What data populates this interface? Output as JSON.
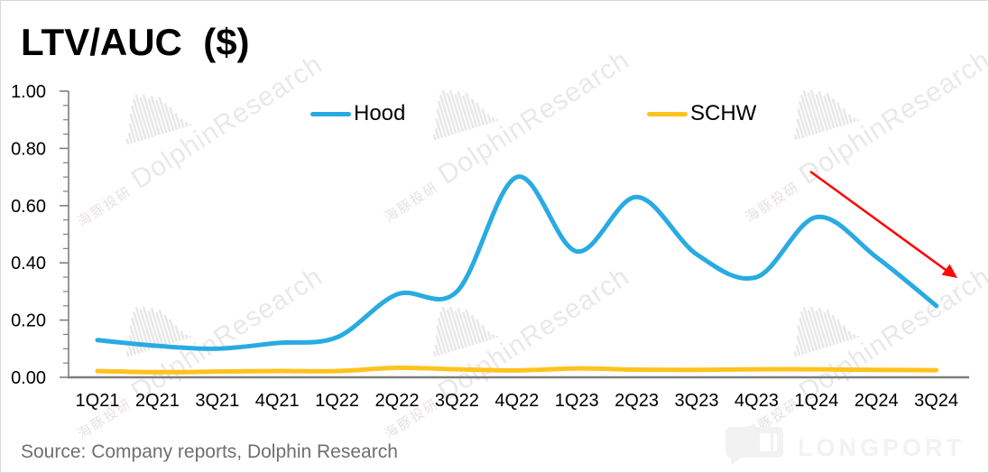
{
  "title": "LTV/AUC  ($)",
  "legend": [
    {
      "label": "Hood",
      "color": "#29ABE2"
    },
    {
      "label": "SCHW",
      "color": "#FFC21E"
    }
  ],
  "source_note": "Source: Company reports, Dolphin Research",
  "watermark": {
    "en": "DolphinResearch",
    "zh": "海豚投研"
  },
  "logo_text": "LONGPORT",
  "colors": {
    "hood_line": "#29ABE2",
    "schw_line": "#FFC21E",
    "arrow_red": "#FB0A0A",
    "axis_gray": "#7f7f7f",
    "source_gray": "#6f6f6f"
  },
  "chart_data": {
    "type": "line",
    "title": "LTV/AUC ($)",
    "categories": [
      "1Q21",
      "2Q21",
      "3Q21",
      "4Q21",
      "1Q22",
      "2Q22",
      "3Q22",
      "4Q22",
      "1Q23",
      "2Q23",
      "3Q23",
      "4Q23",
      "1Q24",
      "2Q24",
      "3Q24"
    ],
    "series": [
      {
        "name": "Hood",
        "color": "#29ABE2",
        "values": [
          0.13,
          0.11,
          0.1,
          0.12,
          0.14,
          0.29,
          0.3,
          0.7,
          0.44,
          0.63,
          0.43,
          0.35,
          0.56,
          0.42,
          0.25
        ]
      },
      {
        "name": "SCHW",
        "color": "#FFC21E",
        "values": [
          0.022,
          0.018,
          0.02,
          0.022,
          0.022,
          0.033,
          0.028,
          0.024,
          0.031,
          0.027,
          0.026,
          0.028,
          0.028,
          0.026,
          0.025
        ]
      }
    ],
    "ylim": [
      0.0,
      1.0
    ],
    "yticks": [
      0.0,
      0.2,
      0.4,
      0.6,
      0.8,
      1.0
    ],
    "ytick_labels": [
      "0.00",
      "0.20",
      "0.40",
      "0.60",
      "0.80",
      "1.00"
    ],
    "xlabel": "",
    "ylabel": "",
    "grid": false,
    "legend_position": "top",
    "line_smoothing": true,
    "annotation": {
      "type": "arrow",
      "color": "#FB0A0A",
      "note": "downward trend arrow over 1Q24-3Q24"
    }
  }
}
